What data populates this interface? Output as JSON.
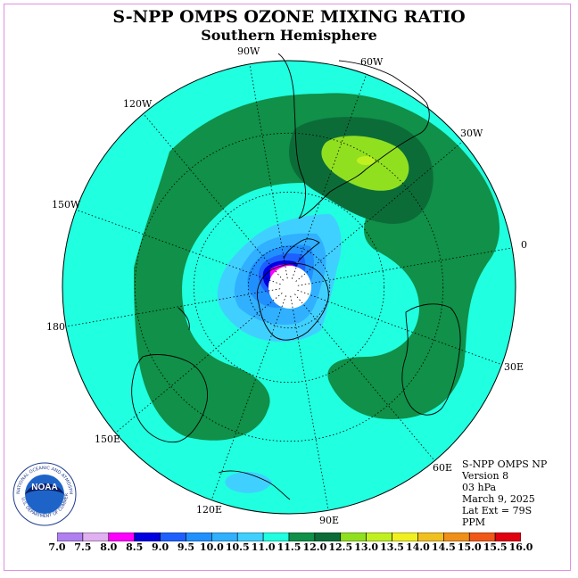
{
  "title": "S-NPP OMPS OZONE MIXING RATIO",
  "subtitle": "Southern Hemisphere",
  "longitude_labels": {
    "w90": "90W",
    "w60": "60W",
    "w30": "30W",
    "w120": "120W",
    "w150": "150W",
    "deg180": "180",
    "zero": "0",
    "e30": "30E",
    "e60": "60E",
    "e90": "90E",
    "e120": "120E",
    "e150": "150E"
  },
  "info": {
    "instrument": "S-NPP OMPS NP",
    "version": "Version 8",
    "level": "03 hPa",
    "date": "March 9, 2025",
    "lat_ext": "Lat Ext = 79S",
    "units": "PPM"
  },
  "logo": {
    "text": "NOAA",
    "ring_text": "NATIONAL OCEANIC AND ATMOSPHERIC ADMINISTRATION",
    "ring_text_bottom": "U.S. DEPARTMENT OF COMMERCE"
  },
  "colorbar": {
    "labels": [
      "7.0",
      "7.5",
      "8.0",
      "8.5",
      "9.0",
      "9.5",
      "10.0",
      "10.5",
      "11.0",
      "11.5",
      "12.0",
      "12.5",
      "13.0",
      "13.5",
      "14.0",
      "14.5",
      "15.0",
      "15.5",
      "16.0"
    ],
    "colors": [
      "#b080f0",
      "#e0b0f0",
      "#ff00ff",
      "#0000e0",
      "#1e60ff",
      "#2090ff",
      "#30b0ff",
      "#40d0ff",
      "#20ffe0",
      "#109048",
      "#0c6c38",
      "#90e020",
      "#c0f020",
      "#f0f020",
      "#f0c020",
      "#f09018",
      "#f05818",
      "#e00010",
      "#806050"
    ]
  },
  "colors": {
    "background_field": "#20ffe0",
    "band_11_5": "#109048",
    "band_12_0": "#0c6c38",
    "band_12_5": "#90e020",
    "band_13_0": "#c0f020",
    "low_10_5": "#40d0ff",
    "low_10_0": "#30b0ff",
    "low_9_5": "#2090ff",
    "low_9_0": "#1e60ff",
    "low_8_5": "#0000e0",
    "low_8_0": "#ff00ff",
    "frame": "#e090e0"
  }
}
